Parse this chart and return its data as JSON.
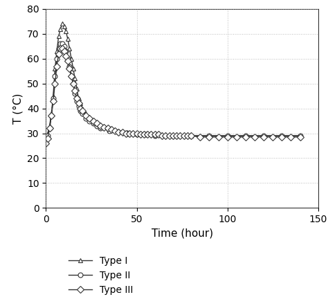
{
  "title": "",
  "xlabel": "Time (hour)",
  "ylabel": "T (°C)",
  "xlim": [
    0,
    150
  ],
  "ylim": [
    0,
    80
  ],
  "xticks": [
    0,
    50,
    100,
    150
  ],
  "yticks": [
    0,
    10,
    20,
    30,
    40,
    50,
    60,
    70,
    80
  ],
  "background_color": "#ffffff",
  "grid_color": "#aaaaaa",
  "line_color": "#333333",
  "type1_x": [
    0,
    1,
    2,
    3,
    4,
    5,
    6,
    7,
    8,
    9,
    10,
    11,
    12,
    13,
    14,
    15,
    16,
    17,
    18,
    19,
    20,
    22,
    24,
    26,
    28,
    30,
    35,
    40,
    45,
    50,
    55,
    60,
    70,
    80,
    90,
    100,
    110,
    120,
    130,
    140
  ],
  "type1_y": [
    28,
    30,
    33,
    38,
    45,
    56,
    63,
    69,
    72,
    74,
    73,
    71,
    68,
    64,
    60,
    56,
    52,
    48,
    44,
    42,
    40,
    38,
    36,
    35,
    34,
    33,
    32,
    31,
    30.5,
    30,
    29.5,
    29.5,
    29,
    29,
    29,
    29,
    29,
    29,
    29,
    29
  ],
  "type2_x": [
    0,
    1,
    2,
    3,
    4,
    5,
    6,
    7,
    8,
    9,
    10,
    11,
    12,
    13,
    14,
    15,
    16,
    17,
    18,
    19,
    20,
    22,
    24,
    26,
    28,
    30,
    35,
    40,
    45,
    50,
    55,
    60,
    70,
    80,
    90,
    100,
    110,
    120,
    130,
    140
  ],
  "type2_y": [
    27,
    29,
    32,
    37,
    44,
    53,
    60,
    64,
    66,
    66,
    65,
    63,
    60,
    57,
    53,
    50,
    46,
    43,
    41,
    39,
    38,
    36,
    35,
    34,
    33,
    32,
    31,
    30.5,
    30,
    29.5,
    29.5,
    29,
    29,
    29,
    29,
    29,
    29,
    29,
    29,
    29
  ],
  "type3_x": [
    0,
    1,
    2,
    3,
    4,
    5,
    6,
    7,
    8,
    9,
    10,
    11,
    12,
    13,
    14,
    15,
    16,
    17,
    18,
    19,
    20,
    22,
    24,
    26,
    28,
    30,
    32,
    34,
    36,
    38,
    40,
    42,
    44,
    46,
    48,
    50,
    52,
    54,
    56,
    58,
    60,
    62,
    64,
    66,
    68,
    70,
    72,
    74,
    76,
    78,
    80,
    85,
    90,
    95,
    100,
    105,
    110,
    115,
    120,
    125,
    130,
    135,
    140
  ],
  "type3_y": [
    26,
    28,
    32,
    37,
    43,
    50,
    57,
    62,
    64,
    64,
    63,
    61,
    59,
    56,
    53,
    50,
    47,
    44,
    42,
    40,
    39,
    37,
    36,
    35,
    34,
    33,
    32.5,
    32,
    31.5,
    31,
    30.5,
    30.5,
    30,
    30,
    30,
    30,
    29.5,
    29.5,
    29.5,
    29.5,
    29.5,
    29.5,
    29,
    29,
    29,
    29,
    29,
    29,
    29,
    29,
    29,
    28.5,
    28.5,
    28.5,
    28.5,
    28.5,
    28.5,
    28.5,
    28.5,
    28.5,
    28.5,
    28.5,
    28.5
  ],
  "legend_labels": [
    "Type I",
    "Type II",
    "Type III"
  ],
  "marker1": "^",
  "marker2": "o",
  "marker3": "D",
  "markersize": 5,
  "linewidth": 1.0,
  "fontsize_label": 11,
  "fontsize_tick": 10,
  "fontsize_legend": 10
}
